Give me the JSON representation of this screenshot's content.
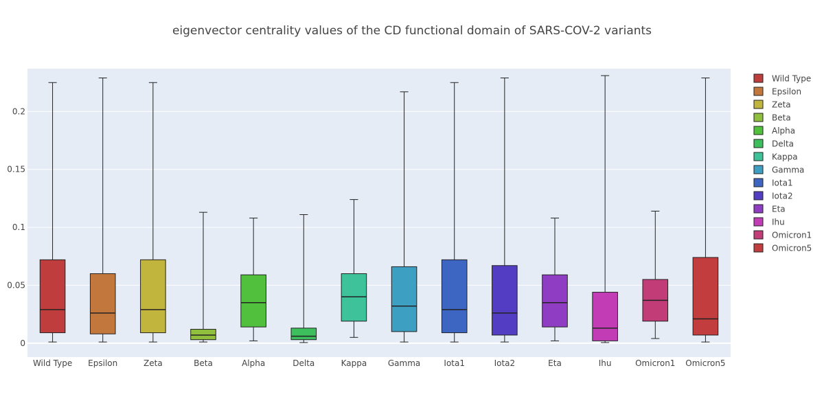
{
  "chart_data": {
    "type": "box",
    "title": "eigenvector centrality values of the CD functional domain of SARS-COV-2 variants",
    "xlabel": "",
    "ylabel": "",
    "ylim": [
      -0.012,
      0.237
    ],
    "yticks": [
      0,
      0.05,
      0.1,
      0.15,
      0.2
    ],
    "ytick_labels": [
      "0",
      "0.05",
      "0.1",
      "0.15",
      "0.2"
    ],
    "grid": true,
    "legend_position": "right",
    "plot_background": "#e5ecf6",
    "grid_color": "#ffffff",
    "categories": [
      "Wild Type",
      "Epsilon",
      "Zeta",
      "Beta",
      "Alpha",
      "Delta",
      "Kappa",
      "Gamma",
      "Iota1",
      "Iota2",
      "Eta",
      "Ihu",
      "Omicron1",
      "Omicron5"
    ],
    "series": [
      {
        "name": "Wild Type",
        "color": "#c03d3e",
        "min": 0.001,
        "q1": 0.009,
        "median": 0.029,
        "q3": 0.072,
        "max": 0.225
      },
      {
        "name": "Epsilon",
        "color": "#c2783d",
        "min": 0.001,
        "q1": 0.008,
        "median": 0.026,
        "q3": 0.06,
        "max": 0.229
      },
      {
        "name": "Zeta",
        "color": "#c2b53d",
        "min": 0.001,
        "q1": 0.009,
        "median": 0.029,
        "q3": 0.072,
        "max": 0.225
      },
      {
        "name": "Beta",
        "color": "#8fbf3d",
        "min": 0.001,
        "q1": 0.003,
        "median": 0.007,
        "q3": 0.012,
        "max": 0.113
      },
      {
        "name": "Alpha",
        "color": "#51c13d",
        "min": 0.002,
        "q1": 0.014,
        "median": 0.035,
        "q3": 0.059,
        "max": 0.108
      },
      {
        "name": "Delta",
        "color": "#3dbf5d",
        "min": 0.0005,
        "q1": 0.003,
        "median": 0.006,
        "q3": 0.013,
        "max": 0.111
      },
      {
        "name": "Kappa",
        "color": "#3dc29a",
        "min": 0.005,
        "q1": 0.019,
        "median": 0.04,
        "q3": 0.06,
        "max": 0.124
      },
      {
        "name": "Gamma",
        "color": "#3d9fc2",
        "min": 0.001,
        "q1": 0.01,
        "median": 0.032,
        "q3": 0.066,
        "max": 0.217
      },
      {
        "name": "Iota1",
        "color": "#3d65c2",
        "min": 0.001,
        "q1": 0.009,
        "median": 0.029,
        "q3": 0.072,
        "max": 0.225
      },
      {
        "name": "Iota2",
        "color": "#533dc2",
        "min": 0.001,
        "q1": 0.007,
        "median": 0.026,
        "q3": 0.067,
        "max": 0.229
      },
      {
        "name": "Eta",
        "color": "#8f3dc2",
        "min": 0.002,
        "q1": 0.014,
        "median": 0.035,
        "q3": 0.059,
        "max": 0.108
      },
      {
        "name": "Ihu",
        "color": "#c23db5",
        "min": 0.0005,
        "q1": 0.002,
        "median": 0.013,
        "q3": 0.044,
        "max": 0.231
      },
      {
        "name": "Omicron1",
        "color": "#c23d77",
        "min": 0.004,
        "q1": 0.019,
        "median": 0.037,
        "q3": 0.055,
        "max": 0.114
      },
      {
        "name": "Omicron5",
        "color": "#c23d3d",
        "min": 0.001,
        "q1": 0.007,
        "median": 0.021,
        "q3": 0.074,
        "max": 0.229
      }
    ]
  }
}
